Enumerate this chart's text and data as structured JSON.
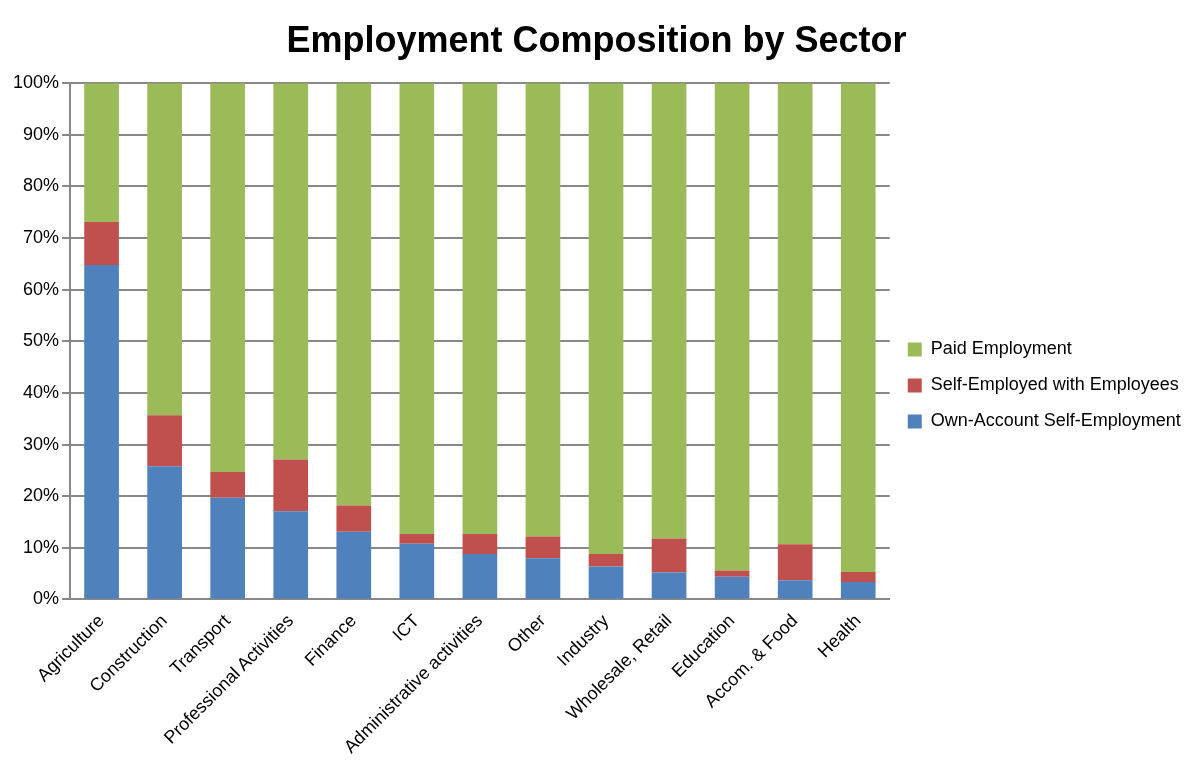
{
  "chart_data": {
    "type": "bar",
    "title": "Employment Composition by Sector",
    "stacked": true,
    "categories": [
      "Agriculture",
      "Construction",
      "Transport",
      "Professional Activities",
      "Finance",
      "ICT",
      "Administrative activities",
      "Other",
      "Industry",
      "Wholesale, Retail",
      "Education",
      "Accom. & Food",
      "Health"
    ],
    "series": [
      {
        "name": "Own-Account Self-Employment",
        "color": "#4f81bd",
        "values": [
          64.8,
          25.8,
          19.7,
          17.1,
          13.1,
          10.8,
          8.8,
          8.0,
          6.4,
          5.2,
          4.4,
          3.7,
          3.4
        ]
      },
      {
        "name": "Self-Employed with Employees",
        "color": "#c0504d",
        "values": [
          8.3,
          9.9,
          5.0,
          10.0,
          5.1,
          1.9,
          3.9,
          4.2,
          2.4,
          6.6,
          1.2,
          7.0,
          1.9
        ]
      },
      {
        "name": "Paid Employment",
        "color": "#9bbb59",
        "values": [
          26.9,
          64.3,
          75.3,
          72.9,
          81.8,
          87.3,
          87.3,
          87.8,
          91.2,
          88.2,
          94.4,
          89.3,
          94.7
        ]
      }
    ],
    "ylim": [
      0,
      100
    ],
    "yticks": [
      {
        "value": 0,
        "label": "0%"
      },
      {
        "value": 10,
        "label": "10%"
      },
      {
        "value": 20,
        "label": "20%"
      },
      {
        "value": 30,
        "label": "30%"
      },
      {
        "value": 40,
        "label": "40%"
      },
      {
        "value": 50,
        "label": "50%"
      },
      {
        "value": 60,
        "label": "60%"
      },
      {
        "value": 70,
        "label": "70%"
      },
      {
        "value": 80,
        "label": "80%"
      },
      {
        "value": 90,
        "label": "90%"
      },
      {
        "value": 100,
        "label": "100%"
      }
    ],
    "grid": "y",
    "legend": "right"
  }
}
